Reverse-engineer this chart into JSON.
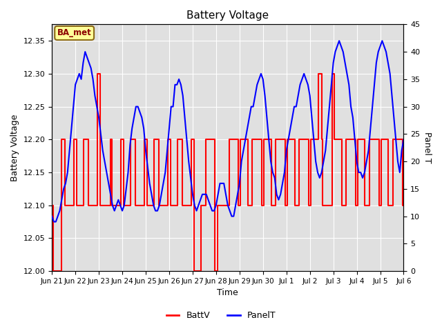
{
  "title": "Battery Voltage",
  "xlabel": "Time",
  "ylabel_left": "Battery Voltage",
  "ylabel_right": "Panel T",
  "annotation": "BA_met",
  "ylim_left": [
    12.0,
    12.375
  ],
  "ylim_right": [
    0,
    45
  ],
  "yticks_left": [
    12.0,
    12.05,
    12.1,
    12.15,
    12.2,
    12.25,
    12.3,
    12.35
  ],
  "yticks_right": [
    0,
    5,
    10,
    15,
    20,
    25,
    30,
    35,
    40,
    45
  ],
  "background_color": "#ffffff",
  "plot_bg_color": "#e0e0e0",
  "grid_color": "#ffffff",
  "line_color_batt": "#ff0000",
  "line_color_panel": "#0000ff",
  "legend_labels": [
    "BattV",
    "PanelT"
  ],
  "xtick_labels": [
    "Jun 21",
    "Jun 22",
    "Jun 23",
    "Jun 24",
    "Jun 25",
    "Jun 26",
    "Jun 27",
    "Jun 28",
    "Jun 29",
    "Jun 30",
    "Jul 1",
    "Jul 2",
    "Jul 3",
    "Jul 4",
    "Jul 5",
    "Jul 6"
  ],
  "batt_x": [
    0,
    0.05,
    0.05,
    0.4,
    0.4,
    0.55,
    0.55,
    0.95,
    0.95,
    1.05,
    1.05,
    1.35,
    1.35,
    1.55,
    1.55,
    1.95,
    1.95,
    2.05,
    2.05,
    2.5,
    2.5,
    2.55,
    2.55,
    2.95,
    2.95,
    3.05,
    3.05,
    3.35,
    3.35,
    3.55,
    3.55,
    3.95,
    3.95,
    4.05,
    4.05,
    4.35,
    4.35,
    4.55,
    4.55,
    4.95,
    4.95,
    5.05,
    5.05,
    5.35,
    5.35,
    5.55,
    5.55,
    5.95,
    5.95,
    6.05,
    6.05,
    6.35,
    6.35,
    6.55,
    6.55,
    6.95,
    6.95,
    7.05,
    7.05,
    7.55,
    7.55,
    7.95,
    7.95,
    8.05,
    8.05,
    8.35,
    8.35,
    8.55,
    8.55,
    8.95,
    8.95,
    9.05,
    9.05,
    9.35,
    9.35,
    9.55,
    9.55,
    9.95,
    9.95,
    10.05,
    10.05,
    10.35,
    10.35,
    10.55,
    10.55,
    10.95,
    10.95,
    11.05,
    11.05,
    11.35,
    11.35,
    11.5,
    11.5,
    11.55,
    11.55,
    11.95,
    11.95,
    12.05,
    12.05,
    12.35,
    12.35,
    12.55,
    12.55,
    12.95,
    12.95,
    13.05,
    13.05,
    13.35,
    13.35,
    13.55,
    13.55,
    13.95,
    13.95,
    14.05,
    14.05,
    14.35,
    14.35,
    14.55,
    14.55,
    14.95,
    14.95,
    15.0
  ],
  "batt_y": [
    12.1,
    12.1,
    12.0,
    12.0,
    12.2,
    12.2,
    12.1,
    12.1,
    12.2,
    12.2,
    12.1,
    12.1,
    12.2,
    12.2,
    12.1,
    12.1,
    12.3,
    12.3,
    12.1,
    12.1,
    12.2,
    12.2,
    12.1,
    12.1,
    12.2,
    12.2,
    12.1,
    12.1,
    12.2,
    12.2,
    12.1,
    12.1,
    12.2,
    12.2,
    12.1,
    12.1,
    12.2,
    12.2,
    12.1,
    12.1,
    12.2,
    12.2,
    12.1,
    12.1,
    12.2,
    12.2,
    12.1,
    12.1,
    12.2,
    12.2,
    12.0,
    12.0,
    12.1,
    12.1,
    12.2,
    12.2,
    12.0,
    12.0,
    12.1,
    12.1,
    12.2,
    12.2,
    12.1,
    12.1,
    12.2,
    12.2,
    12.1,
    12.1,
    12.2,
    12.2,
    12.1,
    12.1,
    12.2,
    12.2,
    12.1,
    12.1,
    12.2,
    12.2,
    12.1,
    12.1,
    12.2,
    12.2,
    12.1,
    12.1,
    12.2,
    12.2,
    12.1,
    12.1,
    12.2,
    12.2,
    12.3,
    12.3,
    12.2,
    12.2,
    12.1,
    12.1,
    12.3,
    12.3,
    12.2,
    12.2,
    12.1,
    12.1,
    12.2,
    12.2,
    12.1,
    12.1,
    12.2,
    12.2,
    12.1,
    12.1,
    12.2,
    12.2,
    12.1,
    12.1,
    12.2,
    12.2,
    12.1,
    12.1,
    12.2,
    12.2,
    12.1,
    12.1
  ],
  "panel_y_raw": [
    10,
    9,
    9,
    10,
    11,
    13,
    15,
    16,
    18,
    22,
    26,
    30,
    34,
    35,
    36,
    35,
    38,
    40,
    39,
    38,
    37,
    35,
    32,
    30,
    28,
    25,
    22,
    20,
    18,
    16,
    14,
    12,
    11,
    12,
    13,
    12,
    11,
    12,
    15,
    18,
    23,
    26,
    28,
    30,
    30,
    29,
    28,
    26,
    22,
    19,
    16,
    14,
    12,
    11,
    11,
    12,
    14,
    16,
    18,
    22,
    26,
    30,
    30,
    34,
    34,
    35,
    34,
    32,
    28,
    24,
    20,
    17,
    14,
    12,
    11,
    12,
    13,
    14,
    14,
    14,
    13,
    12,
    11,
    11,
    12,
    14,
    16,
    16,
    16,
    14,
    12,
    11,
    10,
    10,
    12,
    14,
    16,
    20,
    22,
    24,
    26,
    28,
    30,
    30,
    32,
    34,
    35,
    36,
    35,
    32,
    28,
    24,
    20,
    18,
    17,
    14,
    13,
    14,
    16,
    18,
    22,
    24,
    26,
    28,
    30,
    30,
    32,
    34,
    35,
    36,
    35,
    34,
    32,
    28,
    24,
    20,
    18,
    17,
    18,
    20,
    22,
    26,
    30,
    34,
    38,
    40,
    41,
    42,
    41,
    40,
    38,
    36,
    34,
    30,
    28,
    24,
    20,
    18,
    18,
    17,
    18,
    20,
    22,
    26,
    30,
    34,
    38,
    40,
    41,
    42,
    41,
    40,
    38,
    36,
    32,
    28,
    24,
    20,
    18,
    22,
    24
  ]
}
